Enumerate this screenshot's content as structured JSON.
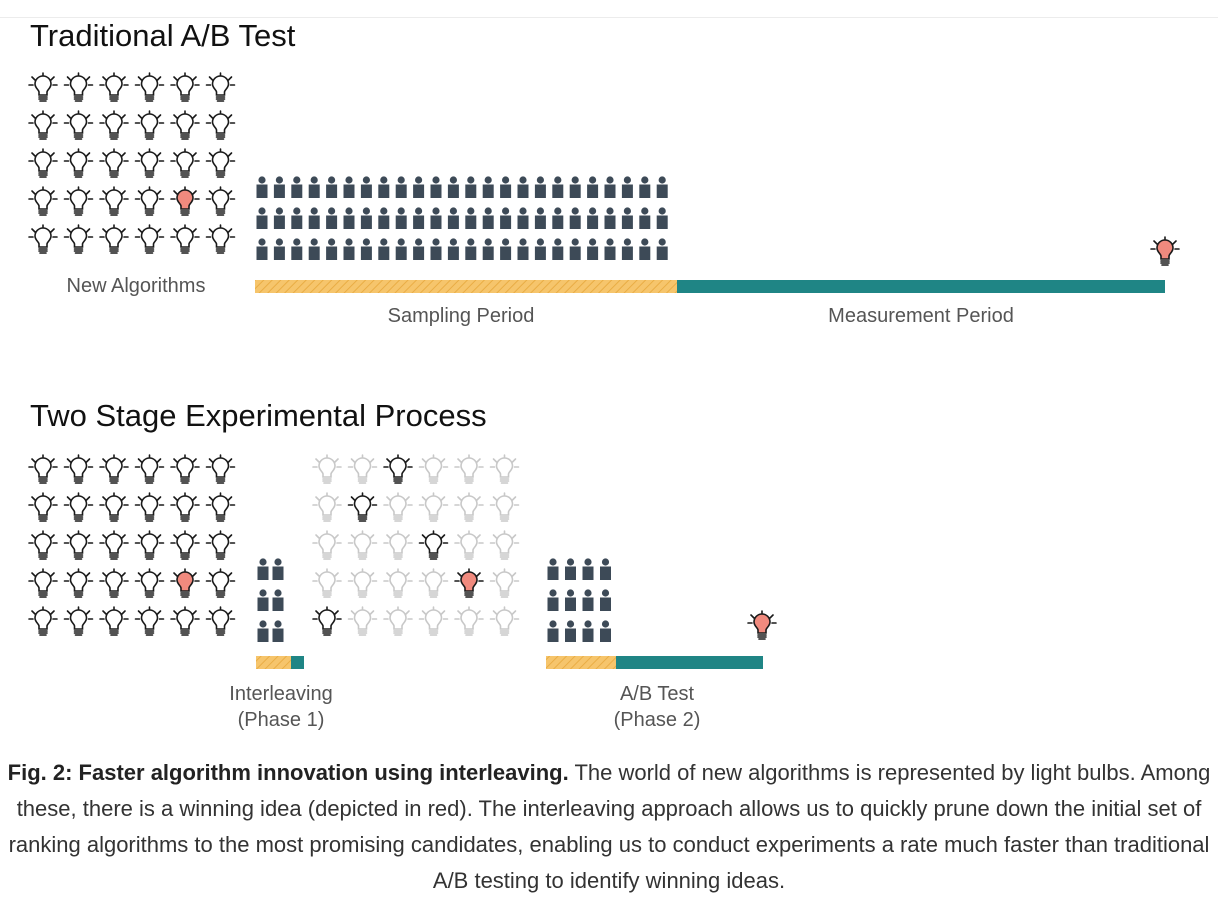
{
  "colors": {
    "bulb_outline": "#1a1a1a",
    "bulb_faded": "#c8c8c8",
    "winner": "#f08a7e",
    "person": "#3d4a57",
    "sampling": "#f6c56c",
    "measurement": "#1f8585"
  },
  "traditional": {
    "title": "Traditional A/B Test",
    "algorithms_label": "New Algorithms",
    "sampling_label": "Sampling Period",
    "measurement_label": "Measurement Period"
  },
  "two_stage": {
    "title": "Two Stage Experimental Process",
    "phase1_label_line1": "Interleaving",
    "phase1_label_line2": "(Phase 1)",
    "phase2_label_line1": "A/B Test",
    "phase2_label_line2": "(Phase 2)"
  },
  "caption": {
    "bold": "Fig. 2: Faster algorithm innovation using interleaving.",
    "text": " The world of new algorithms is represented by light bulbs. Among these, there is a winning idea (depicted in red). The interleaving approach allows us to quickly prune down the initial set of ranking algorithms to the most promising candidates, enabling us to conduct experiments a rate much faster than traditional A/B testing to identify winning ideas."
  },
  "icons": {
    "bulb": "lightbulb-icon",
    "person": "person-icon"
  }
}
